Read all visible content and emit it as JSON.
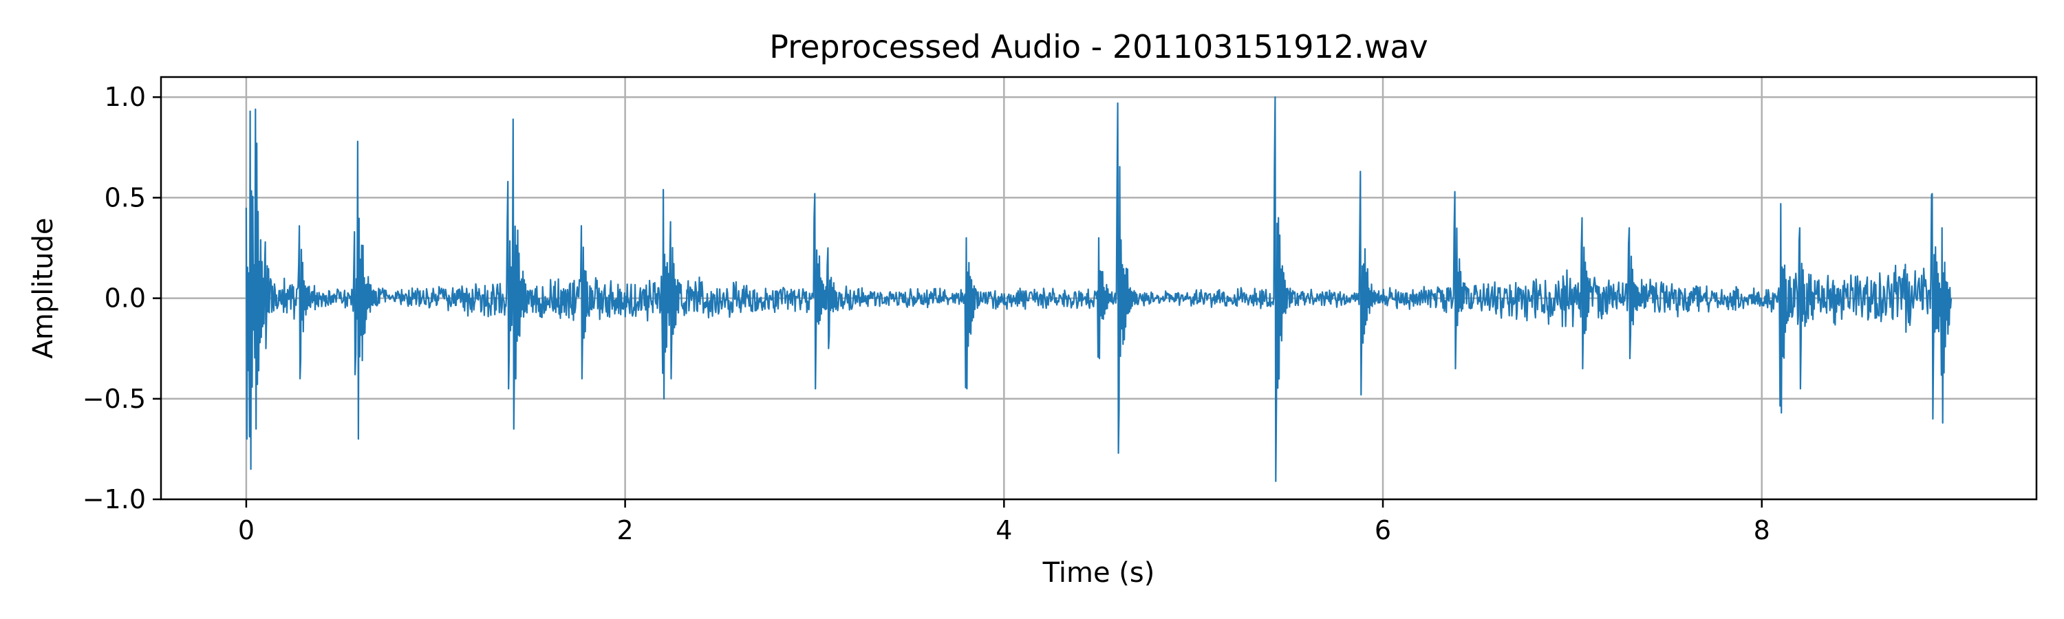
{
  "chart_data": {
    "type": "line",
    "title": "Preprocessed Audio - 201103151912.wav",
    "xlabel": "Time (s)",
    "ylabel": "Amplitude",
    "xlim": [
      -0.45,
      9.45
    ],
    "ylim": [
      -1.0,
      1.1
    ],
    "x_ticks": [
      0,
      2,
      4,
      6,
      8
    ],
    "x_tick_labels": [
      "0",
      "2",
      "4",
      "6",
      "8"
    ],
    "y_ticks": [
      1.0,
      0.5,
      0.0,
      -0.5,
      -1.0
    ],
    "y_tick_labels": [
      "1.0",
      "0.5",
      "0.0",
      "−0.5",
      "−1.0"
    ],
    "grid": true,
    "color": "#1f77b4",
    "series": [
      {
        "duration_s": 9.0,
        "noise_floor": [
          {
            "t": 0.0,
            "amp": 0.06
          },
          {
            "t": 0.15,
            "amp": 0.1
          },
          {
            "t": 0.3,
            "amp": 0.08
          },
          {
            "t": 0.45,
            "amp": 0.04
          },
          {
            "t": 0.6,
            "amp": 0.07
          },
          {
            "t": 0.8,
            "amp": 0.04
          },
          {
            "t": 1.0,
            "amp": 0.06
          },
          {
            "t": 1.2,
            "amp": 0.08
          },
          {
            "t": 1.4,
            "amp": 0.08
          },
          {
            "t": 1.6,
            "amp": 0.09
          },
          {
            "t": 1.8,
            "amp": 0.11
          },
          {
            "t": 2.0,
            "amp": 0.1
          },
          {
            "t": 2.2,
            "amp": 0.1
          },
          {
            "t": 2.45,
            "amp": 0.09
          },
          {
            "t": 2.7,
            "amp": 0.07
          },
          {
            "t": 3.0,
            "amp": 0.06
          },
          {
            "t": 3.3,
            "amp": 0.05
          },
          {
            "t": 3.6,
            "amp": 0.04
          },
          {
            "t": 3.8,
            "amp": 0.05
          },
          {
            "t": 4.0,
            "amp": 0.05
          },
          {
            "t": 4.3,
            "amp": 0.05
          },
          {
            "t": 4.6,
            "amp": 0.04
          },
          {
            "t": 4.9,
            "amp": 0.03
          },
          {
            "t": 5.1,
            "amp": 0.04
          },
          {
            "t": 5.4,
            "amp": 0.05
          },
          {
            "t": 5.7,
            "amp": 0.04
          },
          {
            "t": 6.0,
            "amp": 0.04
          },
          {
            "t": 6.3,
            "amp": 0.06
          },
          {
            "t": 6.6,
            "amp": 0.08
          },
          {
            "t": 6.9,
            "amp": 0.12
          },
          {
            "t": 7.2,
            "amp": 0.11
          },
          {
            "t": 7.5,
            "amp": 0.09
          },
          {
            "t": 7.8,
            "amp": 0.06
          },
          {
            "t": 8.0,
            "amp": 0.04
          },
          {
            "t": 8.2,
            "amp": 0.12
          },
          {
            "t": 8.5,
            "amp": 0.13
          },
          {
            "t": 8.8,
            "amp": 0.17
          },
          {
            "t": 9.0,
            "amp": 0.02
          }
        ],
        "transients": [
          {
            "t": 0.0,
            "pos": 0.45,
            "neg": -0.7
          },
          {
            "t": 0.02,
            "pos": 0.93,
            "neg": -0.85
          },
          {
            "t": 0.05,
            "pos": 0.94,
            "neg": -0.65
          },
          {
            "t": 0.1,
            "pos": 0.28,
            "neg": -0.25
          },
          {
            "t": 0.28,
            "pos": 0.36,
            "neg": -0.4
          },
          {
            "t": 0.57,
            "pos": 0.33,
            "neg": -0.38
          },
          {
            "t": 0.59,
            "pos": 0.78,
            "neg": -0.7
          },
          {
            "t": 1.38,
            "pos": 0.58,
            "neg": -0.45
          },
          {
            "t": 1.41,
            "pos": 0.89,
            "neg": -0.65
          },
          {
            "t": 1.77,
            "pos": 0.36,
            "neg": -0.4
          },
          {
            "t": 2.2,
            "pos": 0.54,
            "neg": -0.5
          },
          {
            "t": 2.24,
            "pos": 0.38,
            "neg": -0.4
          },
          {
            "t": 3.0,
            "pos": 0.52,
            "neg": -0.45
          },
          {
            "t": 3.07,
            "pos": 0.25,
            "neg": -0.25
          },
          {
            "t": 3.8,
            "pos": 0.3,
            "neg": -0.45
          },
          {
            "t": 4.5,
            "pos": 0.3,
            "neg": -0.3
          },
          {
            "t": 4.6,
            "pos": 0.97,
            "neg": -0.77
          },
          {
            "t": 5.43,
            "pos": 1.0,
            "neg": -0.91
          },
          {
            "t": 5.88,
            "pos": 0.63,
            "neg": -0.48
          },
          {
            "t": 6.38,
            "pos": 0.53,
            "neg": -0.35
          },
          {
            "t": 7.05,
            "pos": 0.4,
            "neg": -0.35
          },
          {
            "t": 7.3,
            "pos": 0.35,
            "neg": -0.3
          },
          {
            "t": 8.1,
            "pos": 0.47,
            "neg": -0.57
          },
          {
            "t": 8.2,
            "pos": 0.35,
            "neg": -0.45
          },
          {
            "t": 8.9,
            "pos": 0.52,
            "neg": -0.6
          },
          {
            "t": 8.95,
            "pos": 0.35,
            "neg": -0.62
          }
        ]
      }
    ]
  }
}
